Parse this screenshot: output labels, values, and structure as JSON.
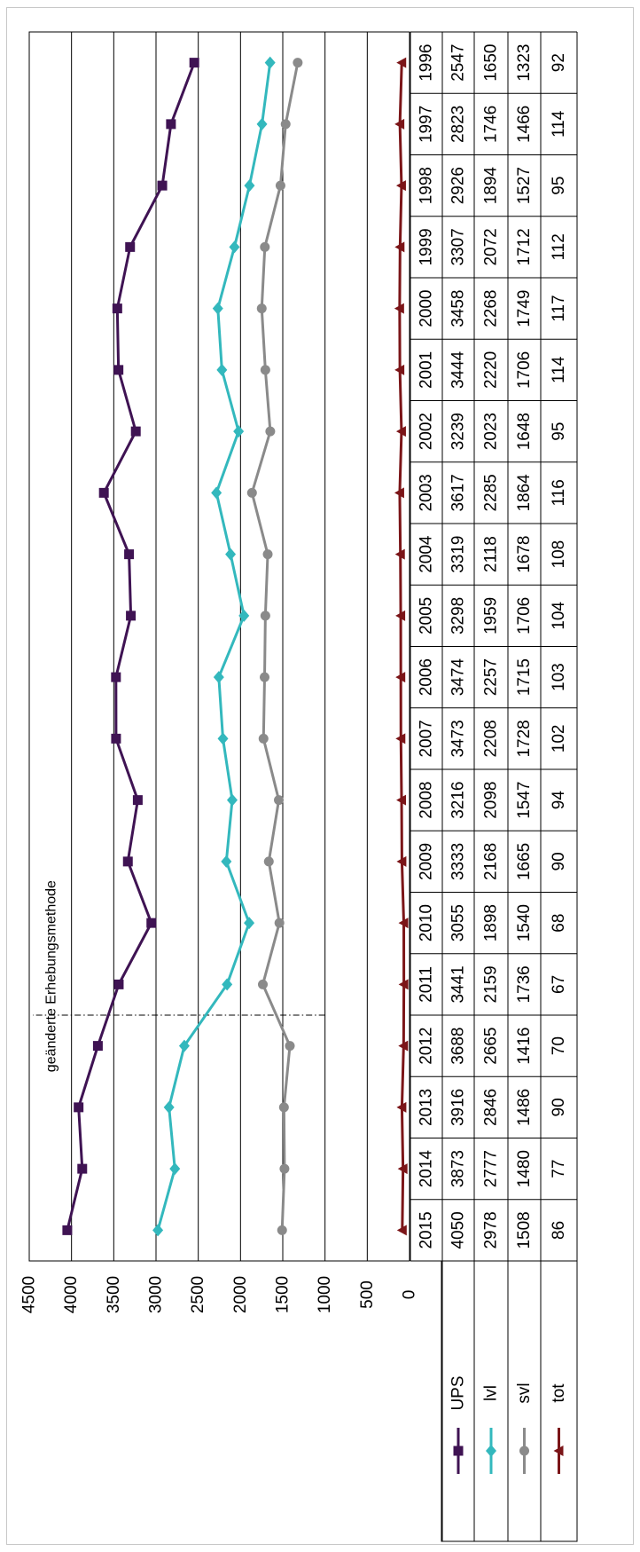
{
  "chart_data": {
    "type": "line",
    "orientation": "rotated-90-cw",
    "title": "",
    "annotation": "geänderte Erhebungsmethode",
    "annotation_between": [
      "2011",
      "2012"
    ],
    "ylim": [
      0,
      4500
    ],
    "ytick_labels": [
      "0",
      "500",
      "1000",
      "1500",
      "2000",
      "2500",
      "3000",
      "3500",
      "4000",
      "4500"
    ],
    "grid": true,
    "legend": "data-table",
    "categories": [
      "1996",
      "1997",
      "1998",
      "1999",
      "2000",
      "2001",
      "2002",
      "2003",
      "2004",
      "2005",
      "2006",
      "2007",
      "2008",
      "2009",
      "2010",
      "2011",
      "2012",
      "2013",
      "2014",
      "2015"
    ],
    "series": [
      {
        "name": "UPS",
        "color": "#3f1353",
        "marker": "square",
        "values": [
          2547,
          2823,
          2926,
          3307,
          3458,
          3444,
          3239,
          3617,
          3319,
          3298,
          3474,
          3473,
          3216,
          3333,
          3055,
          3441,
          3688,
          3916,
          3873,
          4050
        ]
      },
      {
        "name": "lvl",
        "color": "#33b8bd",
        "marker": "diamond",
        "values": [
          1650,
          1746,
          1894,
          2072,
          2268,
          2220,
          2023,
          2285,
          2118,
          1959,
          2257,
          2208,
          2098,
          2168,
          1898,
          2159,
          2665,
          2846,
          2777,
          2978
        ]
      },
      {
        "name": "svl",
        "color": "#8a8a8a",
        "marker": "circle",
        "values": [
          1323,
          1466,
          1527,
          1712,
          1749,
          1706,
          1648,
          1864,
          1678,
          1706,
          1715,
          1728,
          1547,
          1665,
          1540,
          1736,
          1416,
          1486,
          1480,
          1508
        ]
      },
      {
        "name": "tot",
        "color": "#7b1518",
        "marker": "triangle",
        "values": [
          92,
          114,
          95,
          112,
          117,
          114,
          95,
          116,
          108,
          104,
          103,
          102,
          94,
          90,
          68,
          67,
          70,
          90,
          77,
          86
        ]
      }
    ]
  }
}
